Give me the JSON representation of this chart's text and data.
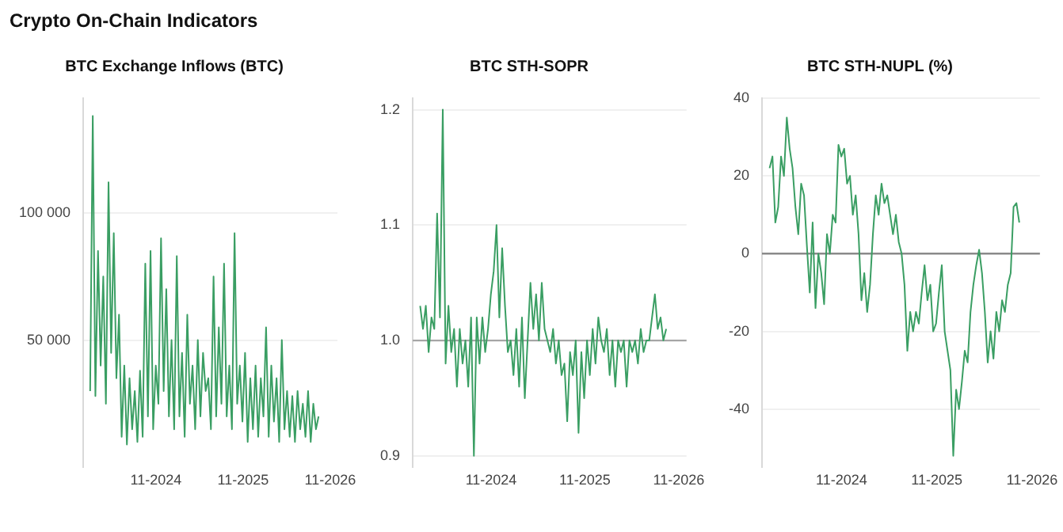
{
  "chart_data": [
    {
      "type": "line",
      "title": "BTC Exchange Inflows (BTC)",
      "annotations": [
        "Crypto On-Chain Indicators"
      ],
      "grid": "y",
      "marker": "none",
      "line_style": "solid",
      "legend": false,
      "x": [
        "2024-01-30",
        "2024-02-10",
        "2024-02-21",
        "2024-03-03",
        "2024-03-14",
        "2024-03-25",
        "2024-04-05",
        "2024-04-16",
        "2024-04-27",
        "2024-05-08",
        "2024-05-19",
        "2024-05-30",
        "2024-06-10",
        "2024-06-21",
        "2024-07-02",
        "2024-07-13",
        "2024-07-24",
        "2024-08-04",
        "2024-08-15",
        "2024-08-26",
        "2024-09-06",
        "2024-09-17",
        "2024-09-28",
        "2024-10-09",
        "2024-10-20",
        "2024-10-31",
        "2024-11-11",
        "2024-11-22",
        "2024-12-03",
        "2024-12-14",
        "2024-12-25",
        "2025-01-05",
        "2025-01-16",
        "2025-01-27",
        "2025-02-07",
        "2025-02-18",
        "2025-03-01",
        "2025-03-12",
        "2025-03-23",
        "2025-04-03",
        "2025-04-14",
        "2025-04-25",
        "2025-05-06",
        "2025-05-17",
        "2025-05-28",
        "2025-06-08",
        "2025-06-19",
        "2025-06-30",
        "2025-07-11",
        "2025-07-22",
        "2025-08-02",
        "2025-08-13",
        "2025-08-24",
        "2025-09-04",
        "2025-09-15",
        "2025-09-26",
        "2025-10-07",
        "2025-10-18",
        "2025-10-29",
        "2025-11-09",
        "2025-11-20",
        "2025-12-01",
        "2025-12-12",
        "2025-12-23",
        "2026-01-03",
        "2026-01-14",
        "2026-01-25",
        "2026-02-05",
        "2026-02-16",
        "2026-02-27",
        "2026-03-10",
        "2026-03-21",
        "2026-04-01",
        "2026-04-12",
        "2026-04-23",
        "2026-05-04",
        "2026-05-15",
        "2026-05-26",
        "2026-06-06",
        "2026-06-17",
        "2026-06-28",
        "2026-07-09",
        "2026-07-20",
        "2026-07-31",
        "2026-08-11",
        "2026-08-22",
        "2026-09-02",
        "2026-09-13"
      ],
      "series": [
        {
          "color": "#3a9e63",
          "values": [
            30000,
            138000,
            28000,
            85000,
            40000,
            75000,
            25000,
            112000,
            45000,
            92000,
            35000,
            60000,
            12000,
            40000,
            9000,
            35000,
            15000,
            30000,
            10000,
            38000,
            12000,
            80000,
            20000,
            85000,
            15000,
            40000,
            25000,
            90000,
            30000,
            70000,
            20000,
            50000,
            15000,
            83000,
            20000,
            45000,
            12000,
            60000,
            25000,
            40000,
            15000,
            50000,
            20000,
            45000,
            30000,
            35000,
            15000,
            75000,
            20000,
            55000,
            25000,
            80000,
            20000,
            40000,
            15000,
            92000,
            25000,
            40000,
            18000,
            45000,
            10000,
            35000,
            15000,
            40000,
            12000,
            35000,
            20000,
            55000,
            12000,
            40000,
            18000,
            35000,
            10000,
            50000,
            15000,
            30000,
            12000,
            28000,
            10000,
            30000,
            15000,
            25000,
            12000,
            30000,
            10000,
            25000,
            15000,
            20000
          ]
        }
      ],
      "xlim": [
        "2024-01",
        "2026-12"
      ],
      "xticks": [
        {
          "value": "2024-11",
          "label": "11-2024"
        },
        {
          "value": "2025-11",
          "label": "11-2025"
        },
        {
          "value": "2026-11",
          "label": "11-2026"
        }
      ],
      "ylim": [
        0,
        145000
      ],
      "yticks": [
        {
          "value": 50000,
          "label": "50 000"
        },
        {
          "value": 100000,
          "label": "100 000"
        }
      ]
    },
    {
      "type": "line",
      "title": "BTC STH-SOPR",
      "grid": "y",
      "marker": "none",
      "line_style": "solid",
      "legend": false,
      "x": [
        "2024-01-30",
        "2024-02-10",
        "2024-02-21",
        "2024-03-03",
        "2024-03-14",
        "2024-03-25",
        "2024-04-05",
        "2024-04-16",
        "2024-04-27",
        "2024-05-08",
        "2024-05-19",
        "2024-05-30",
        "2024-06-10",
        "2024-06-21",
        "2024-07-02",
        "2024-07-13",
        "2024-07-24",
        "2024-08-04",
        "2024-08-15",
        "2024-08-26",
        "2024-09-06",
        "2024-09-17",
        "2024-09-28",
        "2024-10-09",
        "2024-10-20",
        "2024-10-31",
        "2024-11-11",
        "2024-11-22",
        "2024-12-03",
        "2024-12-14",
        "2024-12-25",
        "2025-01-05",
        "2025-01-16",
        "2025-01-27",
        "2025-02-07",
        "2025-02-18",
        "2025-03-01",
        "2025-03-12",
        "2025-03-23",
        "2025-04-03",
        "2025-04-14",
        "2025-04-25",
        "2025-05-06",
        "2025-05-17",
        "2025-05-28",
        "2025-06-08",
        "2025-06-19",
        "2025-06-30",
        "2025-07-11",
        "2025-07-22",
        "2025-08-02",
        "2025-08-13",
        "2025-08-24",
        "2025-09-04",
        "2025-09-15",
        "2025-09-26",
        "2025-10-07",
        "2025-10-18",
        "2025-10-29",
        "2025-11-09",
        "2025-11-20",
        "2025-12-01",
        "2025-12-12",
        "2025-12-23",
        "2026-01-03",
        "2026-01-14",
        "2026-01-25",
        "2026-02-05",
        "2026-02-16",
        "2026-02-27",
        "2026-03-10",
        "2026-03-21",
        "2026-04-01",
        "2026-04-12",
        "2026-04-23",
        "2026-05-04",
        "2026-05-15",
        "2026-05-26",
        "2026-06-06",
        "2026-06-17",
        "2026-06-28",
        "2026-07-09",
        "2026-07-20",
        "2026-07-31",
        "2026-08-11",
        "2026-08-22",
        "2026-09-02",
        "2026-09-13"
      ],
      "series": [
        {
          "color": "#3a9e63",
          "values": [
            1.03,
            1.01,
            1.03,
            0.99,
            1.02,
            1.01,
            1.11,
            1.02,
            1.2,
            0.98,
            1.03,
            0.99,
            1.01,
            0.96,
            1.01,
            0.98,
            1.0,
            0.96,
            1.02,
            0.9,
            1.02,
            0.98,
            1.02,
            0.99,
            1.01,
            1.04,
            1.06,
            1.1,
            1.02,
            1.08,
            1.03,
            0.99,
            1.0,
            0.97,
            1.01,
            0.96,
            1.02,
            0.95,
            1.0,
            1.05,
            1.01,
            1.04,
            1.0,
            1.05,
            1.01,
            1.0,
            0.99,
            1.01,
            0.98,
            1.0,
            0.97,
            0.98,
            0.93,
            0.99,
            0.97,
            1.0,
            0.92,
            0.99,
            0.95,
            1.0,
            0.97,
            1.01,
            0.98,
            1.02,
            1.0,
            0.99,
            1.01,
            0.97,
            1.0,
            0.96,
            1.0,
            0.99,
            1.0,
            0.96,
            1.0,
            0.99,
            1.0,
            0.98,
            1.01,
            0.99,
            1.0,
            1.0,
            1.02,
            1.04,
            1.01,
            1.02,
            1.0,
            1.01
          ]
        }
      ],
      "xlim": [
        "2024-01",
        "2026-12"
      ],
      "xticks": [
        {
          "value": "2024-11",
          "label": "11-2024"
        },
        {
          "value": "2025-11",
          "label": "11-2025"
        },
        {
          "value": "2026-11",
          "label": "11-2026"
        }
      ],
      "ylim": [
        0.89,
        1.21
      ],
      "yticks": [
        {
          "value": 0.9,
          "label": "0.9"
        },
        {
          "value": 1.0,
          "label": "1.0"
        },
        {
          "value": 1.1,
          "label": "1.1"
        },
        {
          "value": 1.2,
          "label": "1.2"
        }
      ],
      "ref_lines": [
        {
          "axis": "y",
          "value": 1.0,
          "color": "#a6a6a6"
        }
      ]
    },
    {
      "type": "line",
      "title": "BTC STH-NUPL (%)",
      "grid": "y",
      "marker": "none",
      "line_style": "solid",
      "legend": false,
      "x": [
        "2024-01-30",
        "2024-02-10",
        "2024-02-21",
        "2024-03-03",
        "2024-03-14",
        "2024-03-25",
        "2024-04-05",
        "2024-04-16",
        "2024-04-27",
        "2024-05-08",
        "2024-05-19",
        "2024-05-30",
        "2024-06-10",
        "2024-06-21",
        "2024-07-02",
        "2024-07-13",
        "2024-07-24",
        "2024-08-04",
        "2024-08-15",
        "2024-08-26",
        "2024-09-06",
        "2024-09-17",
        "2024-09-28",
        "2024-10-09",
        "2024-10-20",
        "2024-10-31",
        "2024-11-11",
        "2024-11-22",
        "2024-12-03",
        "2024-12-14",
        "2024-12-25",
        "2025-01-05",
        "2025-01-16",
        "2025-01-27",
        "2025-02-07",
        "2025-02-18",
        "2025-03-01",
        "2025-03-12",
        "2025-03-23",
        "2025-04-03",
        "2025-04-14",
        "2025-04-25",
        "2025-05-06",
        "2025-05-17",
        "2025-05-28",
        "2025-06-08",
        "2025-06-19",
        "2025-06-30",
        "2025-07-11",
        "2025-07-22",
        "2025-08-02",
        "2025-08-13",
        "2025-08-24",
        "2025-09-04",
        "2025-09-15",
        "2025-09-26",
        "2025-10-07",
        "2025-10-18",
        "2025-10-29",
        "2025-11-09",
        "2025-11-20",
        "2025-12-01",
        "2025-12-12",
        "2025-12-23",
        "2026-01-03",
        "2026-01-14",
        "2026-01-25",
        "2026-02-05",
        "2026-02-16",
        "2026-02-27",
        "2026-03-10",
        "2026-03-21",
        "2026-04-01",
        "2026-04-12",
        "2026-04-23",
        "2026-05-04",
        "2026-05-15",
        "2026-05-26",
        "2026-06-06",
        "2026-06-17",
        "2026-06-28",
        "2026-07-09",
        "2026-07-20",
        "2026-07-31",
        "2026-08-11",
        "2026-08-22",
        "2026-09-02",
        "2026-09-13"
      ],
      "series": [
        {
          "color": "#3a9e63",
          "values": [
            22,
            25,
            8,
            12,
            25,
            20,
            35,
            27,
            22,
            12,
            5,
            18,
            15,
            2,
            -10,
            8,
            -14,
            0,
            -5,
            -13,
            5,
            0,
            10,
            8,
            28,
            25,
            27,
            18,
            20,
            10,
            15,
            5,
            -12,
            -5,
            -15,
            -8,
            5,
            15,
            10,
            18,
            13,
            15,
            10,
            5,
            10,
            3,
            0,
            -8,
            -25,
            -15,
            -20,
            -15,
            -18,
            -10,
            -3,
            -12,
            -8,
            -20,
            -18,
            -10,
            -3,
            -20,
            -25,
            -30,
            -52,
            -35,
            -40,
            -33,
            -25,
            -28,
            -15,
            -8,
            -3,
            1,
            -5,
            -15,
            -28,
            -20,
            -27,
            -15,
            -20,
            -12,
            -15,
            -8,
            -5,
            12,
            13,
            8
          ]
        }
      ],
      "xlim": [
        "2024-01",
        "2026-12"
      ],
      "xticks": [
        {
          "value": "2024-11",
          "label": "11-2024"
        },
        {
          "value": "2025-11",
          "label": "11-2025"
        },
        {
          "value": "2026-11",
          "label": "11-2026"
        }
      ],
      "ylim": [
        -55,
        40
      ],
      "yticks": [
        -40,
        -20,
        0,
        20,
        40
      ],
      "ref_lines": [
        {
          "axis": "y",
          "value": 0,
          "color": "#808080"
        }
      ]
    }
  ]
}
